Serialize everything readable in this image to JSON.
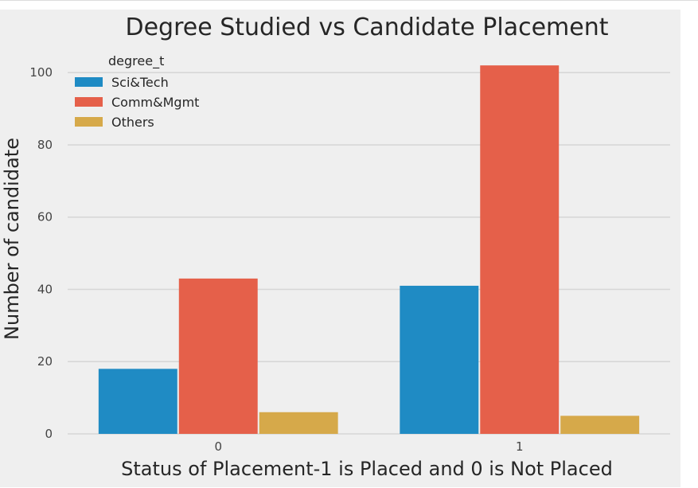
{
  "chart_data": {
    "type": "bar",
    "title": "Degree Studied vs Candidate Placement",
    "xlabel": "Status of Placement-1 is Placed and 0 is Not Placed",
    "ylabel": "Number of candidate",
    "categories": [
      "0",
      "1"
    ],
    "series": [
      {
        "name": "Sci&Tech",
        "values": [
          18,
          41
        ],
        "color": "#1f8bc4"
      },
      {
        "name": "Comm&Mgmt",
        "values": [
          43,
          102
        ],
        "color": "#e5604a"
      },
      {
        "name": "Others",
        "values": [
          6,
          5
        ],
        "color": "#d6a94a"
      }
    ],
    "ylim": [
      0,
      106
    ],
    "yticks": [
      0,
      20,
      40,
      60,
      80,
      100
    ],
    "grid": true,
    "legend": {
      "title": "degree_t",
      "position": "top-left"
    },
    "background": "#efefef",
    "grid_color": "#d6d6d6"
  }
}
